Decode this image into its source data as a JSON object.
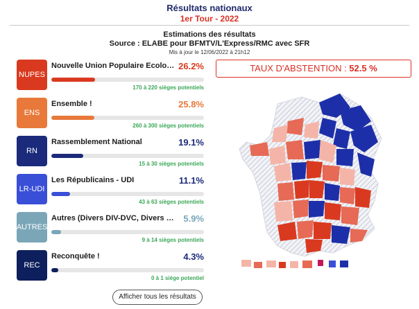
{
  "header": {
    "title": "Résultats nationaux",
    "round": "1er Tour - 2022"
  },
  "source": {
    "heading": "Estimations des résultats",
    "source_line": "Source : ELABE pour BFMTV/L'Express/RMC avec SFR",
    "updated": "Mis à jour le 12/06/2022 à 21h12"
  },
  "abstention": {
    "label": "TAUX D'ABSTENTION : ",
    "value": "52.5 %"
  },
  "parties": [
    {
      "code": "NUPES",
      "name": "Nouvelle Union Populaire Ecologiq...",
      "pct": "26.2%",
      "share": 26.2,
      "seats": "170 à 220 sièges potentiels",
      "color": "#d93a1f",
      "pct_color": "#d93a1f"
    },
    {
      "code": "ENS",
      "name": "Ensemble !",
      "pct": "25.8%",
      "share": 25.8,
      "seats": "260 à 300 sièges potentiels",
      "color": "#e8793a",
      "pct_color": "#e8793a"
    },
    {
      "code": "RN",
      "name": "Rassemblement National",
      "pct": "19.1%",
      "share": 19.1,
      "seats": "15 à 30 sièges potentiels",
      "color": "#1b2a7a",
      "pct_color": "#1b2a7a"
    },
    {
      "code": "LR-UDI",
      "name": "Les Républicains - UDI",
      "pct": "11.1%",
      "share": 11.1,
      "seats": "43 à 63 sièges potentiels",
      "color": "#3a4fd8",
      "pct_color": "#1b2a7a"
    },
    {
      "code": "AUTRES",
      "name": "Autres (Divers DIV-DVC, Divers éco. ...",
      "pct": "5.9%",
      "share": 5.9,
      "seats": "9 à 14 sièges potentiels",
      "color": "#7aa6b8",
      "pct_color": "#7aa6b8"
    },
    {
      "code": "REC",
      "name": "Reconquête !",
      "pct": "4.3%",
      "share": 4.3,
      "seats": "0 à 1 siège potentiel",
      "color": "#0d1f5c",
      "pct_color": "#1b2a7a"
    }
  ],
  "show_all_label": "Afficher tous les résultats"
}
